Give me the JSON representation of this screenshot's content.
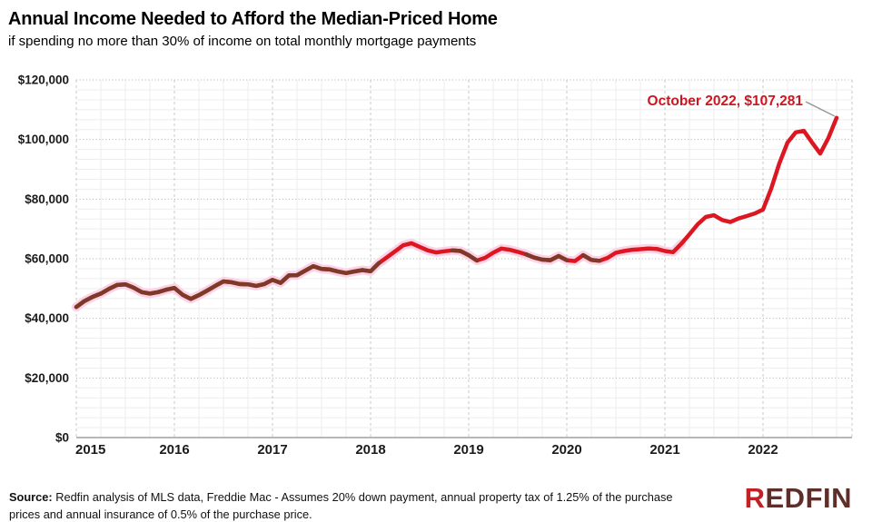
{
  "header": {
    "title": "Annual Income Needed to Afford the Median-Priced Home",
    "subtitle": "if spending no more than 30% of income on total monthly mortgage payments"
  },
  "chart_data": {
    "type": "line",
    "title": "Annual Income Needed to Afford the Median-Priced Home",
    "subtitle": "if spending no more than 30% of income on total monthly mortgage payments",
    "x_ticks": [
      "2015",
      "2016",
      "2017",
      "2018",
      "2019",
      "2020",
      "2021",
      "2022"
    ],
    "y_ticks": [
      {
        "value": 0,
        "label": "$0"
      },
      {
        "value": 20000,
        "label": "$20,000"
      },
      {
        "value": 40000,
        "label": "$40,000"
      },
      {
        "value": 60000,
        "label": "$60,000"
      },
      {
        "value": 80000,
        "label": "$80,000"
      },
      {
        "value": 100000,
        "label": "$100,000"
      },
      {
        "value": 120000,
        "label": "$120,000"
      }
    ],
    "ylim": [
      0,
      120000
    ],
    "grid": "dotted major horizontals, dashed year verticals, faint minor grid",
    "legend_position": "none",
    "x_monthly_start": "2015-01",
    "x_monthly_end": "2022-10",
    "series": [
      {
        "name": "annual-income-needed",
        "color": "#dc1721",
        "values": [
          43800,
          45800,
          47200,
          48300,
          49900,
          51200,
          51400,
          50300,
          48800,
          48300,
          48800,
          49600,
          50200,
          47900,
          46500,
          47800,
          49300,
          50900,
          52400,
          52100,
          51500,
          51400,
          50900,
          51500,
          52900,
          51900,
          54400,
          54500,
          56000,
          57500,
          56600,
          56400,
          55700,
          55200,
          55700,
          56200,
          55800,
          58500,
          60500,
          62500,
          64500,
          65200,
          64000,
          62800,
          62100,
          62500,
          62800,
          62600,
          61200,
          59400,
          60300,
          62000,
          63400,
          63000,
          62300,
          61500,
          60400,
          59700,
          59500,
          60900,
          59500,
          59200,
          61200,
          59600,
          59300,
          60300,
          62000,
          62600,
          63000,
          63200,
          63400,
          63300,
          62600,
          62200,
          65000,
          68200,
          71500,
          74000,
          74600,
          73000,
          72300,
          73500,
          74300,
          75200,
          76500,
          83500,
          92000,
          99000,
          102400,
          102900,
          99000,
          95300,
          100500,
          107281
        ]
      }
    ],
    "halo_series": {
      "color": "#fbd2e6",
      "range": [
        0,
        74
      ]
    },
    "overlap_segments": {
      "color": "#7d3a28",
      "ranges": [
        [
          0,
          37
        ],
        [
          46,
          49
        ],
        [
          55,
          60
        ],
        [
          62,
          64
        ]
      ]
    },
    "annotation": {
      "label": "October 2022, $107,281",
      "month": "2022-10",
      "value": 107281,
      "color": "#ce1620"
    }
  },
  "footer": {
    "source_label": "Source:",
    "source_text": " Redfin analysis of MLS data, Freddie Mac - Assumes 20% down payment, annual property tax of 1.25% of the purchase prices and annual insurance of 0.5% of the purchase price.",
    "logo_r": "R",
    "logo_rest": "EDFIN"
  }
}
